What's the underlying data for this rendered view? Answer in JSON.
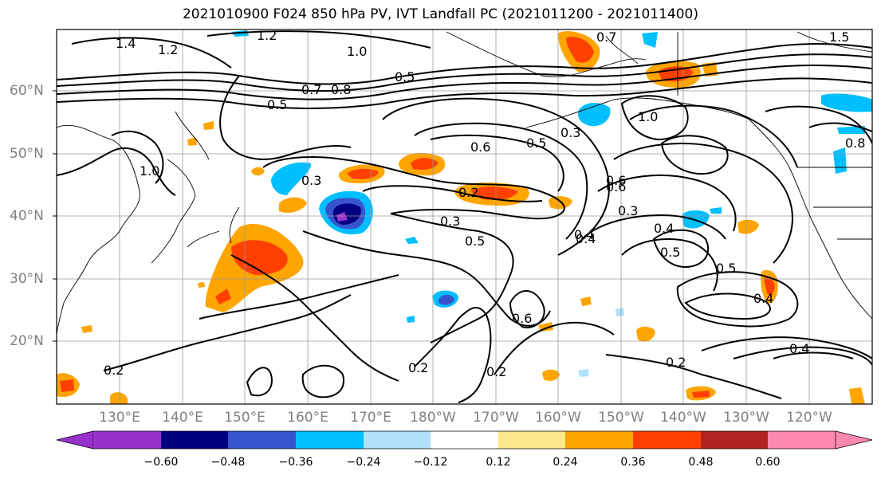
{
  "title": "2021010900 F024 850 hPa PV, IVT Landfall PC (2021011200 - 2021011400)",
  "lat_labels": [
    "60°N",
    "50°N",
    "40°N",
    "30°N",
    "20°N"
  ],
  "lon_labels": [
    "130°E",
    "140°E",
    "150°E",
    "160°E",
    "170°E",
    "180°W",
    "170°W",
    "160°W",
    "150°W",
    "140°W",
    "130°W",
    "120°W"
  ],
  "contour_labels": [
    "1.4",
    "1.2",
    "1.2",
    "1.0",
    "0.7",
    "1.5",
    "0.5",
    "0.7",
    "0.8",
    "0.5",
    "1.0",
    "0.3",
    "0.6",
    "0.5",
    "0.6",
    "0.3",
    "0.2",
    "0.3",
    "0.5",
    "0.4",
    "0.6",
    "0.3",
    "0.4",
    "0.5",
    "0.4",
    "0.5",
    "0.4",
    "0.6",
    "0.2",
    "0.2",
    "0.2",
    "0.2",
    "0.4",
    "1.0",
    "0.8"
  ],
  "colorbar": {
    "colors": [
      "#9932cc",
      "#000080",
      "#3655cc",
      "#00bfff",
      "#b0e0fa",
      "#ffffff",
      "#ffe88a",
      "#ffa500",
      "#ff4000",
      "#b22222",
      "#ff88b0"
    ],
    "ticks": [
      "−0.60",
      "−0.48",
      "−0.36",
      "−0.24",
      "−0.12",
      "0.12",
      "0.24",
      "0.36",
      "0.48",
      "0.60"
    ]
  }
}
